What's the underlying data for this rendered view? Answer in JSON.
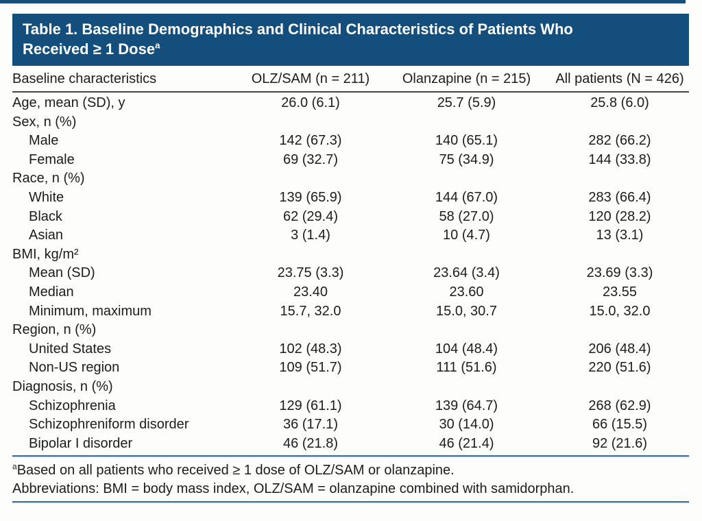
{
  "title": {
    "line1": "Table 1. Baseline Demographics and Clinical Characteristics of Patients Who",
    "line2": "Received ≥ 1 Dose",
    "superscript": "a"
  },
  "table": {
    "columns": [
      "Baseline characteristics",
      "OLZ/SAM (n = 211)",
      "Olanzapine (n = 215)",
      "All patients (N = 426)"
    ],
    "rows": [
      {
        "label": "Age, mean (SD), y",
        "indent": false,
        "values": [
          "26.0 (6.1)",
          "25.7 (5.9)",
          "25.8 (6.0)"
        ]
      },
      {
        "label": "Sex, n (%)",
        "indent": false,
        "values": [
          "",
          "",
          ""
        ]
      },
      {
        "label": "Male",
        "indent": true,
        "values": [
          "142 (67.3)",
          "140 (65.1)",
          "282 (66.2)"
        ]
      },
      {
        "label": "Female",
        "indent": true,
        "values": [
          "69 (32.7)",
          "75 (34.9)",
          "144 (33.8)"
        ]
      },
      {
        "label": "Race, n (%)",
        "indent": false,
        "values": [
          "",
          "",
          ""
        ]
      },
      {
        "label": "White",
        "indent": true,
        "values": [
          "139 (65.9)",
          "144 (67.0)",
          "283 (66.4)"
        ]
      },
      {
        "label": "Black",
        "indent": true,
        "values": [
          "62 (29.4)",
          "58 (27.0)",
          "120 (28.2)"
        ]
      },
      {
        "label": "Asian",
        "indent": true,
        "values": [
          "3 (1.4)",
          "10 (4.7)",
          "13 (3.1)"
        ]
      },
      {
        "label": "BMI, kg/m²",
        "indent": false,
        "values": [
          "",
          "",
          ""
        ]
      },
      {
        "label": "Mean (SD)",
        "indent": true,
        "values": [
          "23.75 (3.3)",
          "23.64 (3.4)",
          "23.69 (3.3)"
        ]
      },
      {
        "label": "Median",
        "indent": true,
        "values": [
          "23.40",
          "23.60",
          "23.55"
        ]
      },
      {
        "label": "Minimum, maximum",
        "indent": true,
        "values": [
          "15.7, 32.0",
          "15.0, 30.7",
          "15.0, 32.0"
        ]
      },
      {
        "label": "Region, n (%)",
        "indent": false,
        "values": [
          "",
          "",
          ""
        ]
      },
      {
        "label": "United States",
        "indent": true,
        "values": [
          "102 (48.3)",
          "104 (48.4)",
          "206 (48.4)"
        ]
      },
      {
        "label": "Non-US region",
        "indent": true,
        "values": [
          "109 (51.7)",
          "111 (51.6)",
          "220 (51.6)"
        ]
      },
      {
        "label": "Diagnosis, n (%)",
        "indent": false,
        "values": [
          "",
          "",
          ""
        ]
      },
      {
        "label": "Schizophrenia",
        "indent": true,
        "values": [
          "129 (61.1)",
          "139 (64.7)",
          "268 (62.9)"
        ]
      },
      {
        "label": "Schizophreniform disorder",
        "indent": true,
        "values": [
          "36 (17.1)",
          "30 (14.0)",
          "66 (15.5)"
        ]
      },
      {
        "label": "Bipolar I disorder",
        "indent": true,
        "values": [
          "46 (21.8)",
          "46 (21.4)",
          "92 (21.6)"
        ]
      }
    ]
  },
  "footnotes": {
    "a_superscript": "a",
    "a_text": "Based on all patients who received ≥ 1 dose of OLZ/SAM or olanzapine.",
    "abbreviations": "Abbreviations: BMI = body mass index, OLZ/SAM = olanzapine combined with samidorphan."
  },
  "colors": {
    "header_bg": "#134e7d",
    "header_text": "#ffffff",
    "rule_dark": "#454545",
    "rule_blue": "#44719e",
    "body_text": "#1c1c1c"
  }
}
